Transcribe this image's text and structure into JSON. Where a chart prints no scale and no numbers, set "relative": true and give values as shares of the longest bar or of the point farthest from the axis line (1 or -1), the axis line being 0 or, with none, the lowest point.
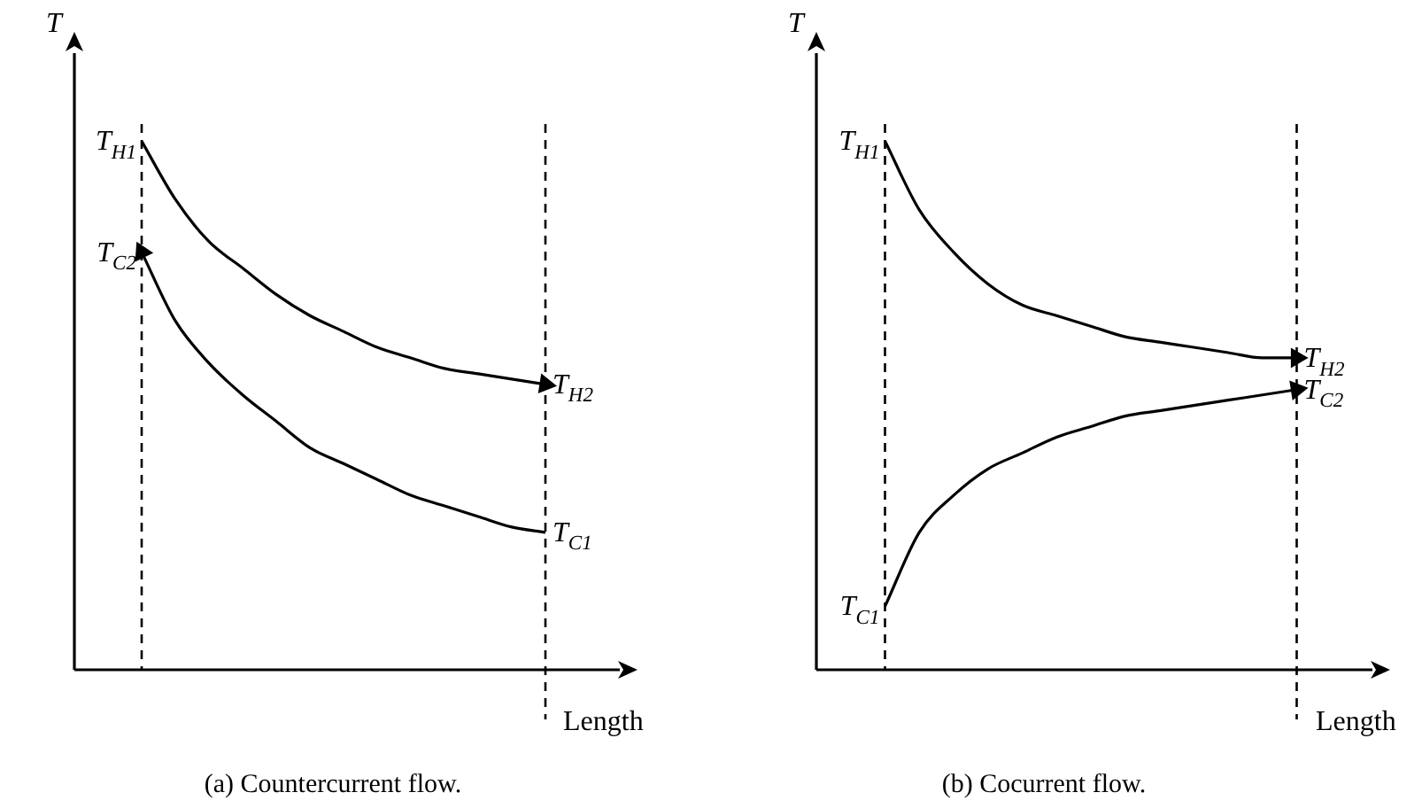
{
  "chart_data": [
    {
      "type": "line",
      "title": "(a) Countercurrent flow.",
      "xlabel": "Length",
      "ylabel": "T",
      "relative": true,
      "marker": "none",
      "legend": false,
      "grid": false,
      "tick_labels": false,
      "categories": [
        null,
        null,
        null,
        null,
        null,
        null,
        null,
        null,
        null,
        null,
        null,
        null,
        null,
        null,
        null,
        null,
        null
      ],
      "series": [
        {
          "color": "#000000",
          "values": [
            null,
            null,
            1,
            0.89,
            0.81,
            0.76,
            0.71,
            0.67,
            0.64,
            0.61,
            0.59,
            0.57,
            0.56,
            0.55,
            0.54,
            null,
            null
          ]
        },
        {
          "color": "#000000",
          "values": [
            null,
            null,
            0.79,
            0.66,
            0.58,
            0.52,
            0.47,
            0.42,
            0.39,
            0.36,
            0.33,
            0.31,
            0.29,
            0.27,
            0.26,
            null,
            null
          ]
        }
      ],
      "annotations": [
        "T$_{H1}$",
        "T$_{H2}$",
        "T$_{C2}$",
        "T$_{C1}$"
      ]
    },
    {
      "type": "line",
      "title": "(b) Cocurrent flow.",
      "xlabel": "Length",
      "ylabel": "T",
      "relative": true,
      "marker": "none",
      "legend": false,
      "grid": false,
      "tick_labels": false,
      "categories": [
        null,
        null,
        null,
        null,
        null,
        null,
        null,
        null,
        null,
        null,
        null,
        null,
        null,
        null,
        null,
        null,
        null
      ],
      "series": [
        {
          "color": "#000000",
          "values": [
            null,
            null,
            1,
            0.87,
            0.79,
            0.73,
            0.69,
            0.67,
            0.65,
            0.63,
            0.62,
            0.61,
            0.6,
            0.59,
            0.59,
            null,
            null
          ]
        },
        {
          "color": "#000000",
          "values": [
            null,
            null,
            0.12,
            0.26,
            0.33,
            0.38,
            0.41,
            0.44,
            0.46,
            0.48,
            0.49,
            0.5,
            0.51,
            0.52,
            0.53,
            null,
            null
          ]
        }
      ],
      "annotations": [
        "T$_{H1}$",
        "T$_{H2}$",
        "T$_{C1}$",
        "T$_{C2}$"
      ]
    }
  ]
}
